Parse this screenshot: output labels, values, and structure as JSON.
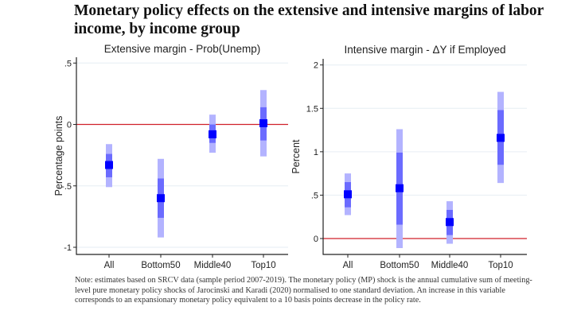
{
  "title": "Monetary policy effects on the extensive and intensive margins of labor income, by income group",
  "note": "Note: estimates based on SRCV data (sample period 2007-2019). The monetary policy (MP) shock is the annual cumulative sum of meeting-level pure monetary policy shocks of Jarocinski and Karadi (2020) normalised to one standard deviation. An increase in this variable corresponds to an expansionary monetary policy equivalent to a 10 basis points decrease in the policy rate.",
  "colors": {
    "point": "#0000ff",
    "inner_ci": "#6b6bff",
    "outer_ci": "#b3b3ff",
    "zero_line": "#d0202a",
    "grid": "#e6eef3"
  },
  "chart_data": [
    {
      "type": "scatter",
      "title": "Extensive margin - Prob(Unemp)",
      "ylabel": "Percentage points",
      "xlabel": "",
      "categories": [
        "All",
        "Bottom50",
        "Middle40",
        "Top10"
      ],
      "ylim": [
        -1,
        0.5
      ],
      "yticks": [
        -1,
        -0.5,
        0,
        0.5
      ],
      "ytick_labels": [
        "-1",
        "-.5",
        "0",
        ".5"
      ],
      "grid": true,
      "reference_line": 0,
      "points": [
        -0.33,
        -0.6,
        -0.08,
        0.01
      ],
      "inner_ci": [
        [
          -0.43,
          -0.24
        ],
        [
          -0.76,
          -0.44
        ],
        [
          -0.15,
          0.0
        ],
        [
          -0.13,
          0.14
        ]
      ],
      "outer_ci": [
        [
          -0.51,
          -0.16
        ],
        [
          -0.92,
          -0.28
        ],
        [
          -0.23,
          0.08
        ],
        [
          -0.26,
          0.28
        ]
      ]
    },
    {
      "type": "scatter",
      "title": "Intensive margin - ΔY if Employed",
      "ylabel": "Percent",
      "xlabel": "",
      "categories": [
        "All",
        "Bottom50",
        "Middle40",
        "Top10"
      ],
      "ylim": [
        0,
        2
      ],
      "yticks": [
        0,
        0.5,
        1,
        1.5,
        2
      ],
      "ytick_labels": [
        "0",
        ".5",
        "1",
        "1.5",
        "2"
      ],
      "grid": true,
      "reference_line": 0,
      "points": [
        0.51,
        0.58,
        0.19,
        1.16
      ],
      "inner_ci": [
        [
          0.36,
          0.65
        ],
        [
          0.16,
          0.99
        ],
        [
          0.04,
          0.33
        ],
        [
          0.85,
          1.48
        ]
      ],
      "outer_ci": [
        [
          0.27,
          0.75
        ],
        [
          -0.11,
          1.26
        ],
        [
          -0.06,
          0.43
        ],
        [
          0.64,
          1.69
        ]
      ]
    }
  ]
}
